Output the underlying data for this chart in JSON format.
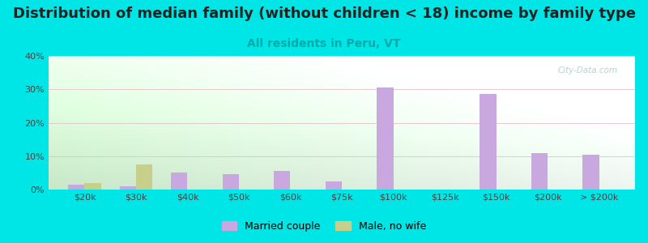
{
  "title": "Distribution of median family (without children < 18) income by family type",
  "subtitle": "All residents in Peru, VT",
  "categories": [
    "$20k",
    "$30k",
    "$40k",
    "$50k",
    "$60k",
    "$75k",
    "$100k",
    "$125k",
    "$150k",
    "$200k",
    "> $200k"
  ],
  "married_couple": [
    1.5,
    1.0,
    5.0,
    4.5,
    5.5,
    2.5,
    30.5,
    0.0,
    28.5,
    11.0,
    10.5
  ],
  "male_no_wife": [
    2.0,
    7.5,
    0.0,
    0.0,
    0.0,
    0.0,
    0.0,
    0.0,
    0.0,
    0.0,
    0.0
  ],
  "married_color": "#c9a8e0",
  "male_color": "#c8cf8a",
  "bg_outer": "#00e5e5",
  "bg_chart_topleft": "#d4ecd4",
  "bg_chart_right": "#e8f0f0",
  "bg_chart_bottom": "#f5fff5",
  "grid_color": "#e8b8c8",
  "title_fontsize": 13,
  "subtitle_fontsize": 10,
  "subtitle_color": "#00aaaa",
  "watermark": "City-Data.com",
  "ylim": [
    0,
    40
  ],
  "yticks": [
    0,
    10,
    20,
    30,
    40
  ],
  "bar_width": 0.32
}
